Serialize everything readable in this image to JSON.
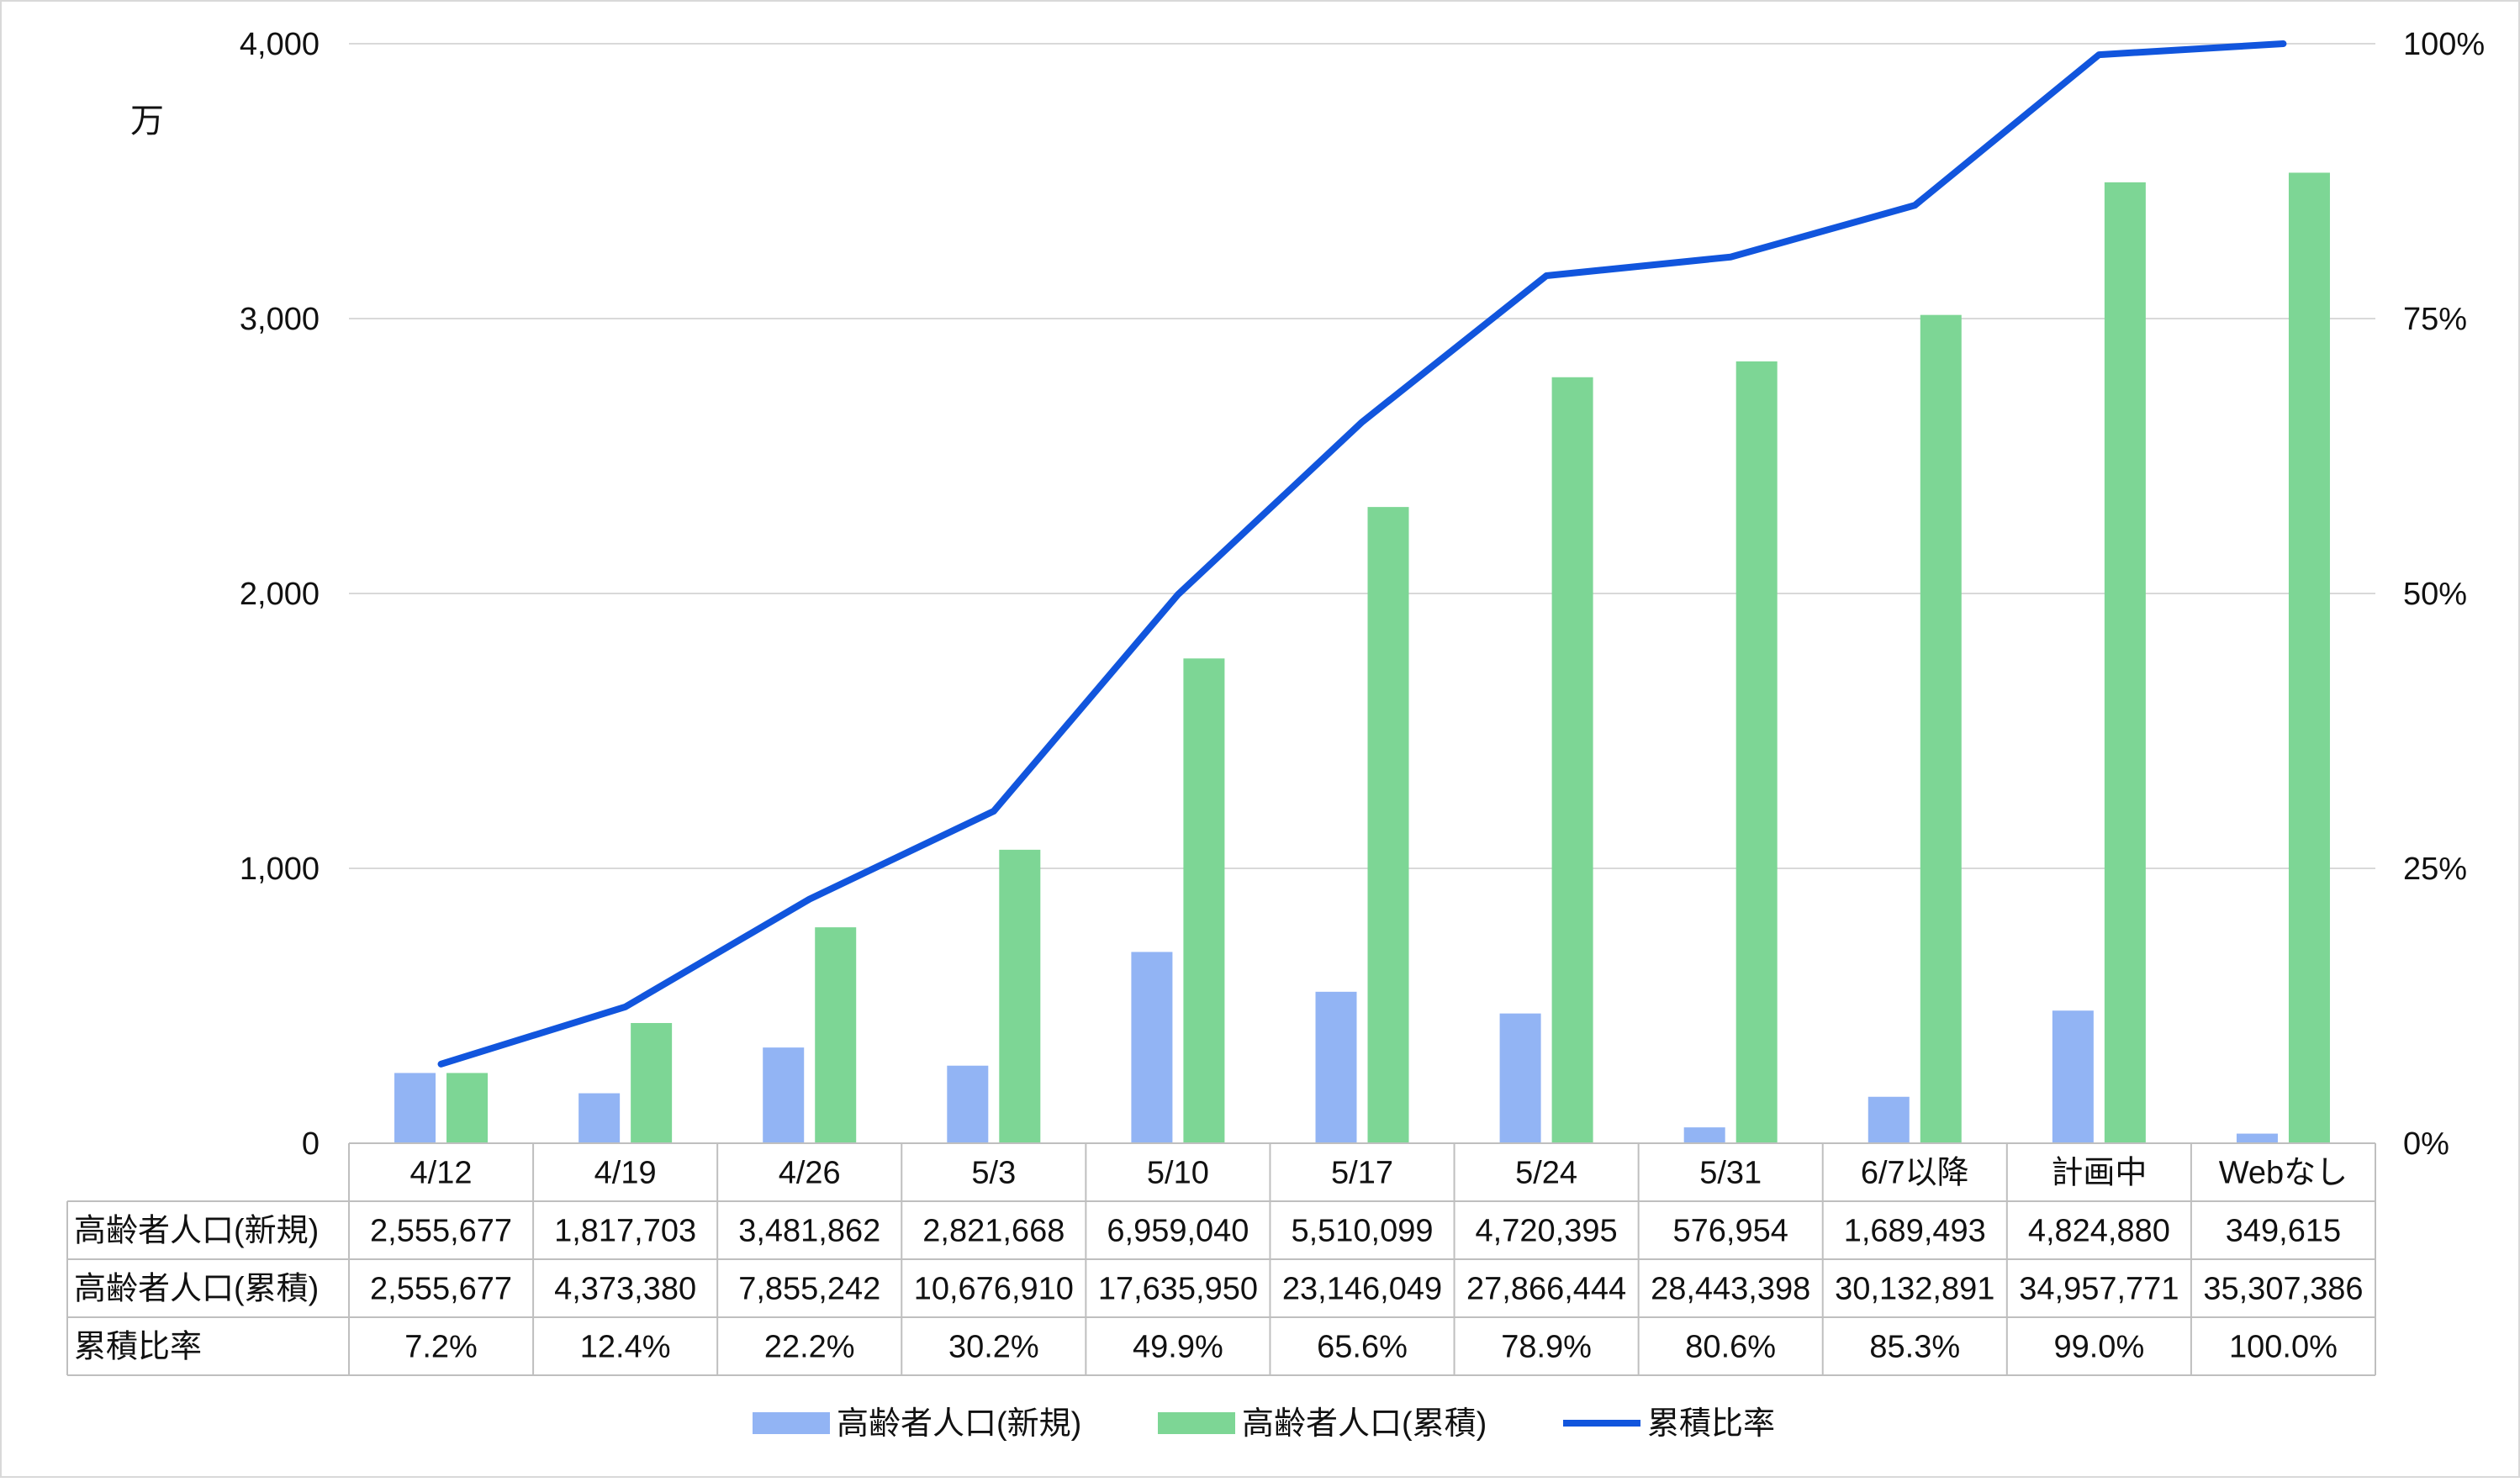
{
  "chart_data": {
    "type": "bar",
    "combo": "bar+line+table",
    "categories": [
      "4/12",
      "4/19",
      "4/26",
      "5/3",
      "5/10",
      "5/17",
      "5/24",
      "5/31",
      "6/7以降",
      "計画中",
      "Webなし"
    ],
    "left_axis": {
      "unit_label": "万",
      "ylim": [
        0,
        4000
      ],
      "ticks": [
        "0",
        "1,000",
        "2,000",
        "3,000",
        "4,000"
      ],
      "tick_values": [
        0,
        1000,
        2000,
        3000,
        4000
      ]
    },
    "right_axis": {
      "ylim": [
        0,
        100
      ],
      "ticks": [
        "0%",
        "25%",
        "50%",
        "75%",
        "100%"
      ],
      "tick_values": [
        0,
        25,
        50,
        75,
        100
      ]
    },
    "grid": true,
    "legend_position": "bottom",
    "series": [
      {
        "name": "高齢者人口(新規)",
        "kind": "bar",
        "axis": "left",
        "color": "#92b4f4",
        "values": [
          2555677,
          1817703,
          3481862,
          2821668,
          6959040,
          5510099,
          4720395,
          576954,
          1689493,
          4824880,
          349615
        ],
        "labels": [
          "2,555,677",
          "1,817,703",
          "3,481,862",
          "2,821,668",
          "6,959,040",
          "5,510,099",
          "4,720,395",
          "576,954",
          "1,689,493",
          "4,824,880",
          "349,615"
        ]
      },
      {
        "name": "高齢者人口(累積)",
        "kind": "bar",
        "axis": "left",
        "color": "#7dd695",
        "values": [
          2555677,
          4373380,
          7855242,
          10676910,
          17635950,
          23146049,
          27866444,
          28443398,
          30132891,
          34957771,
          35307386
        ],
        "labels": [
          "2,555,677",
          "4,373,380",
          "7,855,242",
          "10,676,910",
          "17,635,950",
          "23,146,049",
          "27,866,444",
          "28,443,398",
          "30,132,891",
          "34,957,771",
          "35,307,386"
        ]
      },
      {
        "name": "累積比率",
        "kind": "line",
        "axis": "right",
        "color": "#1155dd",
        "values": [
          7.2,
          12.4,
          22.2,
          30.2,
          49.9,
          65.6,
          78.9,
          80.6,
          85.3,
          99.0,
          100.0
        ],
        "labels": [
          "7.2%",
          "12.4%",
          "22.2%",
          "30.2%",
          "49.9%",
          "65.6%",
          "78.9%",
          "80.6%",
          "85.3%",
          "99.0%",
          "100.0%"
        ]
      }
    ]
  }
}
